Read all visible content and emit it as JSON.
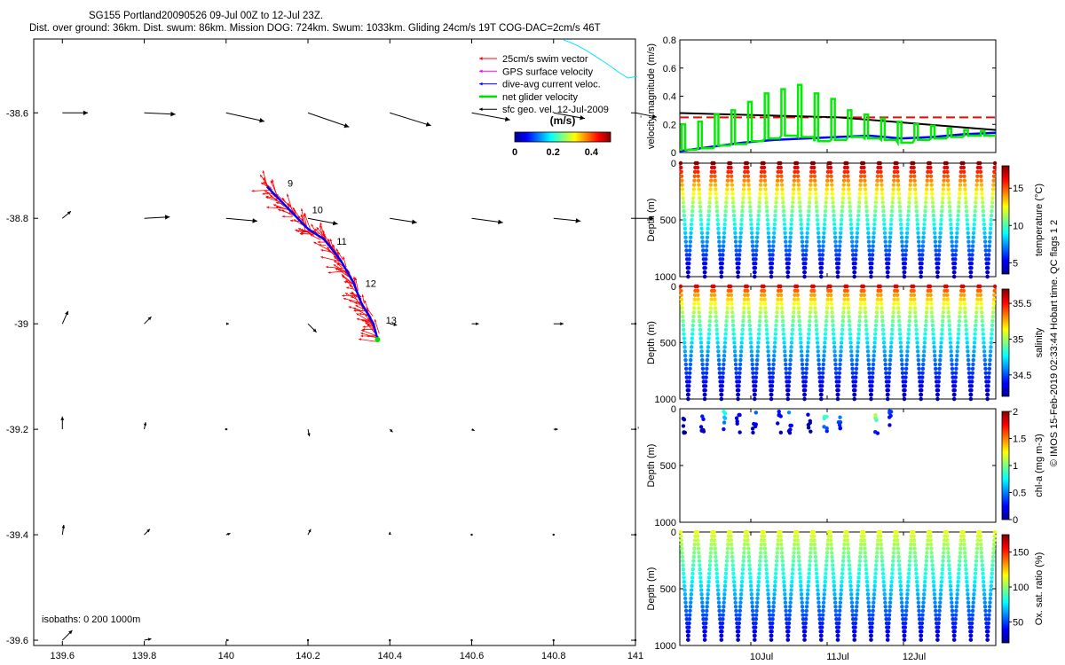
{
  "header": {
    "title_line1": "SG155 Portland20090526 09-Jul 00Z to 12-Jul 23Z.",
    "title_line2": "Dist. over ground: 36km. Dist. swum: 86km. Mission DOG: 724km. Swum: 1033km. Gliding 24cm/s 19T COG-DAC=2cm/s 46T"
  },
  "footer": {
    "credit": "© IMOS 15-Feb-2019 02:33:44 Hobart time. QC flags 1  2"
  },
  "chart_data": [
    {
      "type": "scatter",
      "name": "map",
      "xlabel": "",
      "ylabel": "",
      "xlim": [
        139.53,
        141.0
      ],
      "ylim": [
        -39.61,
        -38.46
      ],
      "xticks": [
        139.6,
        139.8,
        140,
        140.2,
        140.4,
        140.6,
        140.8,
        141
      ],
      "xtick_labels": [
        "139.6",
        "139.8",
        "140",
        "140.2",
        "140.4",
        "140.6",
        "140.8",
        "141"
      ],
      "yticks": [
        -38.6,
        -38.8,
        -39,
        -39.2,
        -39.4,
        -39.6
      ],
      "ytick_labels": [
        "-38.6",
        "-38.8",
        "-39",
        "-39.2",
        "-39.4",
        "-39.6"
      ],
      "legend": {
        "placement": "top-right",
        "items": [
          {
            "label": "25cm/s swim vector",
            "color": "#ff0000"
          },
          {
            "label": "GPS surface velocity",
            "color": "#ff00ff"
          },
          {
            "label": "dive-avg current veloc.",
            "color": "#0000ff"
          },
          {
            "label": "net glider velocity",
            "color": "#00dd00"
          },
          {
            "label": "sfc geo. vel. 12-Jul-2009",
            "color": "#000000"
          }
        ]
      },
      "colorbar": {
        "label": "(m/s)",
        "ticks": [
          "0",
          "0.2",
          "0.4"
        ],
        "range": [
          0,
          0.5
        ]
      },
      "isobaths_label": "isobaths: 0   200  1000m",
      "track": {
        "lon": [
          140.1,
          140.15,
          140.2,
          140.24,
          140.28,
          140.31,
          140.33,
          140.36,
          140.37
        ],
        "lat": [
          -38.74,
          -38.78,
          -38.82,
          -38.84,
          -38.88,
          -38.92,
          -38.96,
          -39.0,
          -39.03
        ]
      },
      "day_labels": [
        {
          "text": "9",
          "lon": 140.15,
          "lat": -38.74
        },
        {
          "text": "10",
          "lon": 140.21,
          "lat": -38.79
        },
        {
          "text": "11",
          "lon": 140.27,
          "lat": -38.85
        },
        {
          "text": "12",
          "lon": 140.34,
          "lat": -38.93
        },
        {
          "text": "13",
          "lon": 140.39,
          "lat": -39.0
        }
      ],
      "vector_grid": {
        "lon": [
          139.6,
          139.8,
          140.0,
          140.2,
          140.4,
          140.6,
          140.8,
          141.0
        ],
        "lat": [
          -38.6,
          -38.8,
          -39.0,
          -39.2,
          -39.4,
          -39.6
        ],
        "u": [
          [
            0.18,
            0.22,
            0.27,
            0.29,
            0.29,
            0.27,
            0.22,
            0.15
          ],
          [
            0.06,
            0.18,
            0.22,
            0.21,
            0.19,
            0.22,
            0.19,
            0.13
          ],
          [
            0.04,
            0.05,
            0.02,
            0.06,
            0.05,
            0.05,
            0.07,
            0.0
          ],
          [
            0.0,
            0.01,
            0.01,
            0.01,
            0.02,
            0.02,
            0.03,
            0.0
          ],
          [
            0.01,
            0.04,
            0.03,
            0.02,
            0.0,
            0.0,
            0.0,
            0.0
          ],
          [
            0.07,
            0.05,
            0.02,
            0.0,
            0.0,
            0.0,
            0.0,
            0.0
          ]
        ],
        "v": [
          [
            0.0,
            -0.01,
            -0.06,
            -0.1,
            -0.09,
            -0.05,
            -0.04,
            -0.03
          ],
          [
            0.05,
            0.01,
            -0.02,
            -0.04,
            -0.03,
            -0.03,
            -0.02,
            0.0
          ],
          [
            0.09,
            0.05,
            0.0,
            -0.06,
            -0.01,
            0.0,
            0.0,
            0.0
          ],
          [
            0.09,
            0.05,
            0.0,
            -0.05,
            -0.02,
            -0.01,
            0.0,
            0.0
          ],
          [
            0.07,
            0.04,
            0.01,
            0.04,
            0.02,
            0.0,
            0.0,
            0.0
          ],
          [
            0.07,
            0.01,
            0.0,
            0.0,
            0.0,
            0.0,
            0.0,
            0.0
          ]
        ]
      }
    },
    {
      "type": "line",
      "name": "velocity",
      "ylabel": "velocity magnitude (m/s)",
      "ylim": [
        0,
        0.8
      ],
      "yticks": [
        0,
        0.2,
        0.4,
        0.6,
        0.8
      ],
      "ytick_labels": [
        "0",
        "0.2",
        "0.4",
        "0.6",
        "0.8"
      ],
      "series": [
        {
          "name": "swim speed",
          "color": "#ff0000",
          "dashed": true,
          "x": [
            0,
            1
          ],
          "y": [
            0.25,
            0.25
          ]
        },
        {
          "name": "sfc geo. vel.",
          "color": "#000000",
          "x": [
            0,
            0.5,
            1
          ],
          "y": [
            0.28,
            0.25,
            0.16
          ]
        },
        {
          "name": "dive-avg current",
          "color": "#0000ff",
          "x": [
            0,
            0.1,
            0.2,
            0.3,
            0.4,
            0.5,
            0.6,
            0.7,
            0.8,
            0.9,
            1
          ],
          "y": [
            0.01,
            0.04,
            0.07,
            0.09,
            0.1,
            0.11,
            0.12,
            0.1,
            0.11,
            0.13,
            0.14
          ]
        },
        {
          "name": "net glider velocity",
          "color": "#00ee00",
          "peaks": [
            0.2,
            0.22,
            0.27,
            0.3,
            0.36,
            0.42,
            0.45,
            0.48,
            0.42,
            0.38,
            0.3,
            0.27,
            0.24,
            0.22,
            0.2,
            0.19,
            0.17,
            0.16,
            0.15
          ],
          "troughs": [
            0.02,
            0.03,
            0.05,
            0.06,
            0.08,
            0.1,
            0.12,
            0.11,
            0.08,
            0.09,
            0.11,
            0.1,
            0.09,
            0.07,
            0.09,
            0.1,
            0.11,
            0.12,
            0.12
          ]
        }
      ],
      "extra_mark": "ʼ"
    },
    {
      "type": "scatter",
      "name": "temperature",
      "ylabel": "Depth (m)",
      "ylim": [
        0,
        1000
      ],
      "yticks": [
        0,
        500,
        1000
      ],
      "ytick_labels": [
        "0",
        "500",
        "1000"
      ],
      "cycles": 19,
      "max_depth": 1000,
      "colorbar": {
        "label": "temperature (°C)",
        "range": [
          3.5,
          18
        ],
        "ticks": [
          5,
          10,
          15
        ],
        "tick_labels": [
          "5",
          "10",
          "15"
        ]
      }
    },
    {
      "type": "scatter",
      "name": "salinity",
      "ylabel": "Depth (m)",
      "ylim": [
        0,
        1000
      ],
      "yticks": [
        0,
        500,
        1000
      ],
      "ytick_labels": [
        "0",
        "500",
        "1000"
      ],
      "cycles": 19,
      "max_depth": 1000,
      "colorbar": {
        "label": "salinity",
        "range": [
          34.2,
          35.7
        ],
        "ticks": [
          34.5,
          35,
          35.5
        ],
        "tick_labels": [
          "34.5",
          "35",
          "35.5"
        ]
      }
    },
    {
      "type": "scatter",
      "name": "chlorophyll",
      "ylabel": "Depth (m)",
      "ylim": [
        0,
        1000
      ],
      "yticks": [
        0,
        500,
        1000
      ],
      "ytick_labels": [
        "0",
        "500",
        "1000"
      ],
      "colorbar": {
        "label": "chl-a (mg m-3)",
        "range": [
          0,
          2
        ],
        "ticks": [
          0,
          0.5,
          1,
          1.5,
          2
        ],
        "tick_labels": [
          "0",
          "0.5",
          "1",
          "1.5",
          "2"
        ]
      },
      "extra_mark": "ʼ"
    },
    {
      "type": "scatter",
      "name": "oxygen",
      "ylabel": "Depth (m)",
      "ylim": [
        0,
        1000
      ],
      "yticks": [
        0,
        500,
        1000
      ],
      "ytick_labels": [
        "0",
        "500",
        "1000"
      ],
      "cycles": 19,
      "max_depth": 950,
      "colorbar": {
        "label": "Ox. sat. ratio (%)",
        "range": [
          20,
          175
        ],
        "ticks": [
          50,
          100,
          150
        ],
        "tick_labels": [
          "50",
          "100",
          "150"
        ]
      },
      "xticks": [
        "10Jul",
        "11Jul",
        "12Jul"
      ]
    }
  ]
}
